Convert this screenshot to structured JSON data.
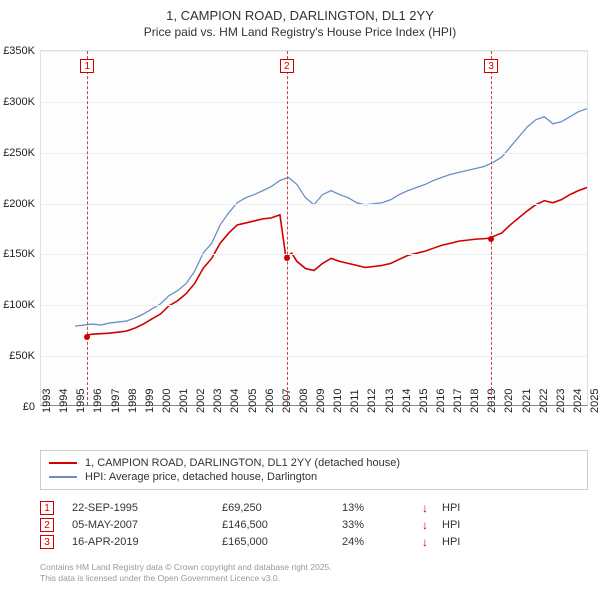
{
  "title": {
    "line1": "1, CAMPION ROAD, DARLINGTON, DL1 2YY",
    "line2": "Price paid vs. HM Land Registry's House Price Index (HPI)"
  },
  "chart": {
    "type": "line",
    "background_color": "#fdfdfd",
    "grid_color": "#eeeeee",
    "axis_color": "#888888",
    "x": {
      "min": 1993,
      "max": 2025,
      "ticks": [
        1993,
        1994,
        1995,
        1996,
        1997,
        1998,
        1999,
        2000,
        2001,
        2002,
        2003,
        2004,
        2005,
        2006,
        2007,
        2008,
        2009,
        2010,
        2011,
        2012,
        2013,
        2014,
        2015,
        2016,
        2017,
        2018,
        2019,
        2020,
        2021,
        2022,
        2023,
        2024,
        2025
      ]
    },
    "y": {
      "min": 0,
      "max": 350000,
      "tick_step": 50000,
      "labels": [
        "£0",
        "£50K",
        "£100K",
        "£150K",
        "£200K",
        "£250K",
        "£300K",
        "£350K"
      ]
    },
    "series": [
      {
        "id": "price_paid",
        "label": "1, CAMPION ROAD, DARLINGTON, DL1 2YY (detached house)",
        "color": "#d00000",
        "width": 1.6,
        "data": [
          [
            1995.7,
            69250
          ],
          [
            1996.0,
            70000
          ],
          [
            1996.5,
            70500
          ],
          [
            1997.0,
            71000
          ],
          [
            1997.5,
            72000
          ],
          [
            1998.0,
            73000
          ],
          [
            1998.5,
            76000
          ],
          [
            1999.0,
            80000
          ],
          [
            1999.5,
            85000
          ],
          [
            2000.0,
            90000
          ],
          [
            2000.5,
            98000
          ],
          [
            2001.0,
            103000
          ],
          [
            2001.5,
            110000
          ],
          [
            2002.0,
            120000
          ],
          [
            2002.5,
            135000
          ],
          [
            2003.0,
            145000
          ],
          [
            2003.5,
            160000
          ],
          [
            2004.0,
            170000
          ],
          [
            2004.5,
            178000
          ],
          [
            2005.0,
            180000
          ],
          [
            2005.5,
            182000
          ],
          [
            2006.0,
            184000
          ],
          [
            2006.5,
            185000
          ],
          [
            2007.0,
            188000
          ],
          [
            2007.35,
            146500
          ],
          [
            2007.7,
            150000
          ],
          [
            2008.0,
            142000
          ],
          [
            2008.5,
            135000
          ],
          [
            2009.0,
            133000
          ],
          [
            2009.5,
            140000
          ],
          [
            2010.0,
            145000
          ],
          [
            2010.5,
            142000
          ],
          [
            2011.0,
            140000
          ],
          [
            2011.5,
            138000
          ],
          [
            2012.0,
            136000
          ],
          [
            2012.5,
            137000
          ],
          [
            2013.0,
            138000
          ],
          [
            2013.5,
            140000
          ],
          [
            2014.0,
            144000
          ],
          [
            2014.5,
            148000
          ],
          [
            2015.0,
            150000
          ],
          [
            2015.5,
            152000
          ],
          [
            2016.0,
            155000
          ],
          [
            2016.5,
            158000
          ],
          [
            2017.0,
            160000
          ],
          [
            2017.5,
            162000
          ],
          [
            2018.0,
            163000
          ],
          [
            2018.5,
            164000
          ],
          [
            2019.0,
            164500
          ],
          [
            2019.29,
            165000
          ],
          [
            2019.7,
            168000
          ],
          [
            2020.0,
            170000
          ],
          [
            2020.5,
            178000
          ],
          [
            2021.0,
            185000
          ],
          [
            2021.5,
            192000
          ],
          [
            2022.0,
            198000
          ],
          [
            2022.5,
            202000
          ],
          [
            2023.0,
            200000
          ],
          [
            2023.5,
            203000
          ],
          [
            2024.0,
            208000
          ],
          [
            2024.5,
            212000
          ],
          [
            2025.0,
            215000
          ]
        ]
      },
      {
        "id": "hpi",
        "label": "HPI: Average price, detached house, Darlington",
        "color": "#6a8fc7",
        "width": 1.3,
        "data": [
          [
            1995.0,
            78000
          ],
          [
            1995.5,
            79000
          ],
          [
            1996.0,
            80000
          ],
          [
            1996.5,
            79000
          ],
          [
            1997.0,
            81000
          ],
          [
            1997.5,
            82000
          ],
          [
            1998.0,
            83000
          ],
          [
            1998.5,
            86000
          ],
          [
            1999.0,
            90000
          ],
          [
            1999.5,
            95000
          ],
          [
            2000.0,
            100000
          ],
          [
            2000.5,
            108000
          ],
          [
            2001.0,
            113000
          ],
          [
            2001.5,
            120000
          ],
          [
            2002.0,
            132000
          ],
          [
            2002.5,
            150000
          ],
          [
            2003.0,
            160000
          ],
          [
            2003.5,
            178000
          ],
          [
            2004.0,
            190000
          ],
          [
            2004.5,
            200000
          ],
          [
            2005.0,
            205000
          ],
          [
            2005.5,
            208000
          ],
          [
            2006.0,
            212000
          ],
          [
            2006.5,
            216000
          ],
          [
            2007.0,
            222000
          ],
          [
            2007.5,
            225000
          ],
          [
            2008.0,
            218000
          ],
          [
            2008.5,
            205000
          ],
          [
            2009.0,
            198000
          ],
          [
            2009.5,
            208000
          ],
          [
            2010.0,
            212000
          ],
          [
            2010.5,
            208000
          ],
          [
            2011.0,
            205000
          ],
          [
            2011.5,
            200000
          ],
          [
            2012.0,
            198000
          ],
          [
            2012.5,
            199000
          ],
          [
            2013.0,
            200000
          ],
          [
            2013.5,
            203000
          ],
          [
            2014.0,
            208000
          ],
          [
            2014.5,
            212000
          ],
          [
            2015.0,
            215000
          ],
          [
            2015.5,
            218000
          ],
          [
            2016.0,
            222000
          ],
          [
            2016.5,
            225000
          ],
          [
            2017.0,
            228000
          ],
          [
            2017.5,
            230000
          ],
          [
            2018.0,
            232000
          ],
          [
            2018.5,
            234000
          ],
          [
            2019.0,
            236000
          ],
          [
            2019.5,
            240000
          ],
          [
            2020.0,
            245000
          ],
          [
            2020.5,
            255000
          ],
          [
            2021.0,
            265000
          ],
          [
            2021.5,
            275000
          ],
          [
            2022.0,
            282000
          ],
          [
            2022.5,
            285000
          ],
          [
            2023.0,
            278000
          ],
          [
            2023.5,
            280000
          ],
          [
            2024.0,
            285000
          ],
          [
            2024.5,
            290000
          ],
          [
            2025.0,
            293000
          ]
        ]
      }
    ],
    "markers": [
      {
        "id": "1",
        "x": 1995.7,
        "box_y": 62
      },
      {
        "id": "2",
        "x": 2007.35,
        "box_y": 62
      },
      {
        "id": "3",
        "x": 2019.29,
        "box_y": 62
      }
    ],
    "sale_points": [
      {
        "x": 1995.7,
        "y": 69250,
        "color": "#d00000"
      },
      {
        "x": 2007.35,
        "y": 146500,
        "color": "#d00000"
      },
      {
        "x": 2019.29,
        "y": 165000,
        "color": "#d00000"
      }
    ]
  },
  "legend": {
    "rows": [
      {
        "color": "#d00000",
        "label": "1, CAMPION ROAD, DARLINGTON, DL1 2YY (detached house)"
      },
      {
        "color": "#6a8fc7",
        "label": "HPI: Average price, detached house, Darlington"
      }
    ]
  },
  "sales_table": {
    "rows": [
      {
        "marker": "1",
        "date": "22-SEP-1995",
        "price": "£69,250",
        "pct": "13%",
        "arrow": "↓",
        "suffix": "HPI"
      },
      {
        "marker": "2",
        "date": "05-MAY-2007",
        "price": "£146,500",
        "pct": "33%",
        "arrow": "↓",
        "suffix": "HPI"
      },
      {
        "marker": "3",
        "date": "16-APR-2019",
        "price": "£165,000",
        "pct": "24%",
        "arrow": "↓",
        "suffix": "HPI"
      }
    ]
  },
  "footer": {
    "line1": "Contains HM Land Registry data © Crown copyright and database right 2025.",
    "line2": "This data is licensed under the Open Government Licence v3.0."
  }
}
